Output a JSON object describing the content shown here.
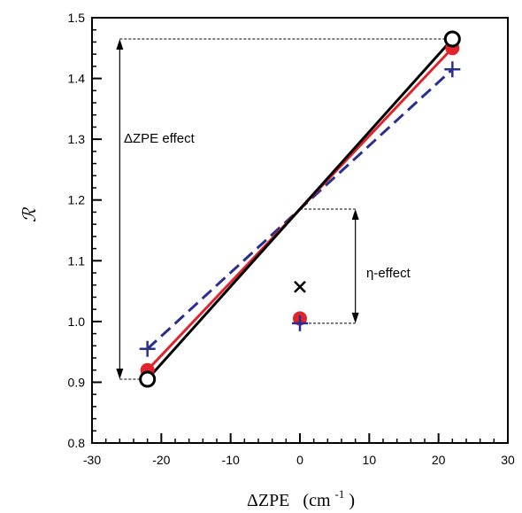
{
  "chart_data": {
    "type": "line",
    "title": "",
    "xlabel_main": "ΔZPE",
    "xlabel_unit": "(cm",
    "xlabel_exp": "-1",
    "xlabel_close": ")",
    "ylabel": "ℛ",
    "xlim": [
      -30,
      30
    ],
    "ylim": [
      0.8,
      1.5
    ],
    "xticks": [
      -30,
      -20,
      -10,
      0,
      10,
      20,
      30
    ],
    "xtick_labels": [
      "-30",
      "-20",
      "-10",
      "0",
      "10",
      "20",
      "30"
    ],
    "yticks": [
      0.8,
      0.9,
      1.0,
      1.1,
      1.2,
      1.3,
      1.4,
      1.5
    ],
    "ytick_labels": [
      "0.8",
      "0.9",
      "1.0",
      "1.1",
      "1.2",
      "1.3",
      "1.4",
      "1.5"
    ],
    "x_minor_step": 2,
    "y_minor_step": 0.02,
    "grid": false,
    "colors": {
      "black": "#000000",
      "red": "#e0242c",
      "blue": "#2a2f8f"
    },
    "series": [
      {
        "color": "#000000",
        "style": "solid",
        "marker": "open-circle",
        "x": [
          -22,
          22
        ],
        "y": [
          0.905,
          1.465
        ]
      },
      {
        "color": "#e0242c",
        "style": "solid",
        "marker": "filled-circle",
        "x": [
          -22,
          22
        ],
        "y": [
          0.92,
          1.45
        ]
      },
      {
        "color": "#2a2f8f",
        "style": "dashed",
        "marker": "plus",
        "x": [
          -22,
          22
        ],
        "y": [
          0.955,
          1.415
        ]
      }
    ],
    "isolated_points": [
      {
        "x": 0,
        "y": 1.057,
        "marker": "x",
        "color": "#000000"
      },
      {
        "x": 0,
        "y": 1.005,
        "marker": "filled-circle",
        "color": "#e0242c"
      },
      {
        "x": 0,
        "y": 0.997,
        "marker": "plus",
        "color": "#2a2f8f"
      }
    ],
    "annotations": [
      {
        "text": "ΔZPE effect",
        "arrow_x": -26,
        "arrow_from": 0.905,
        "arrow_to": 1.465
      },
      {
        "text": "η-effect",
        "arrow_x": 8,
        "arrow_from": 0.997,
        "arrow_to": 1.185
      }
    ]
  }
}
